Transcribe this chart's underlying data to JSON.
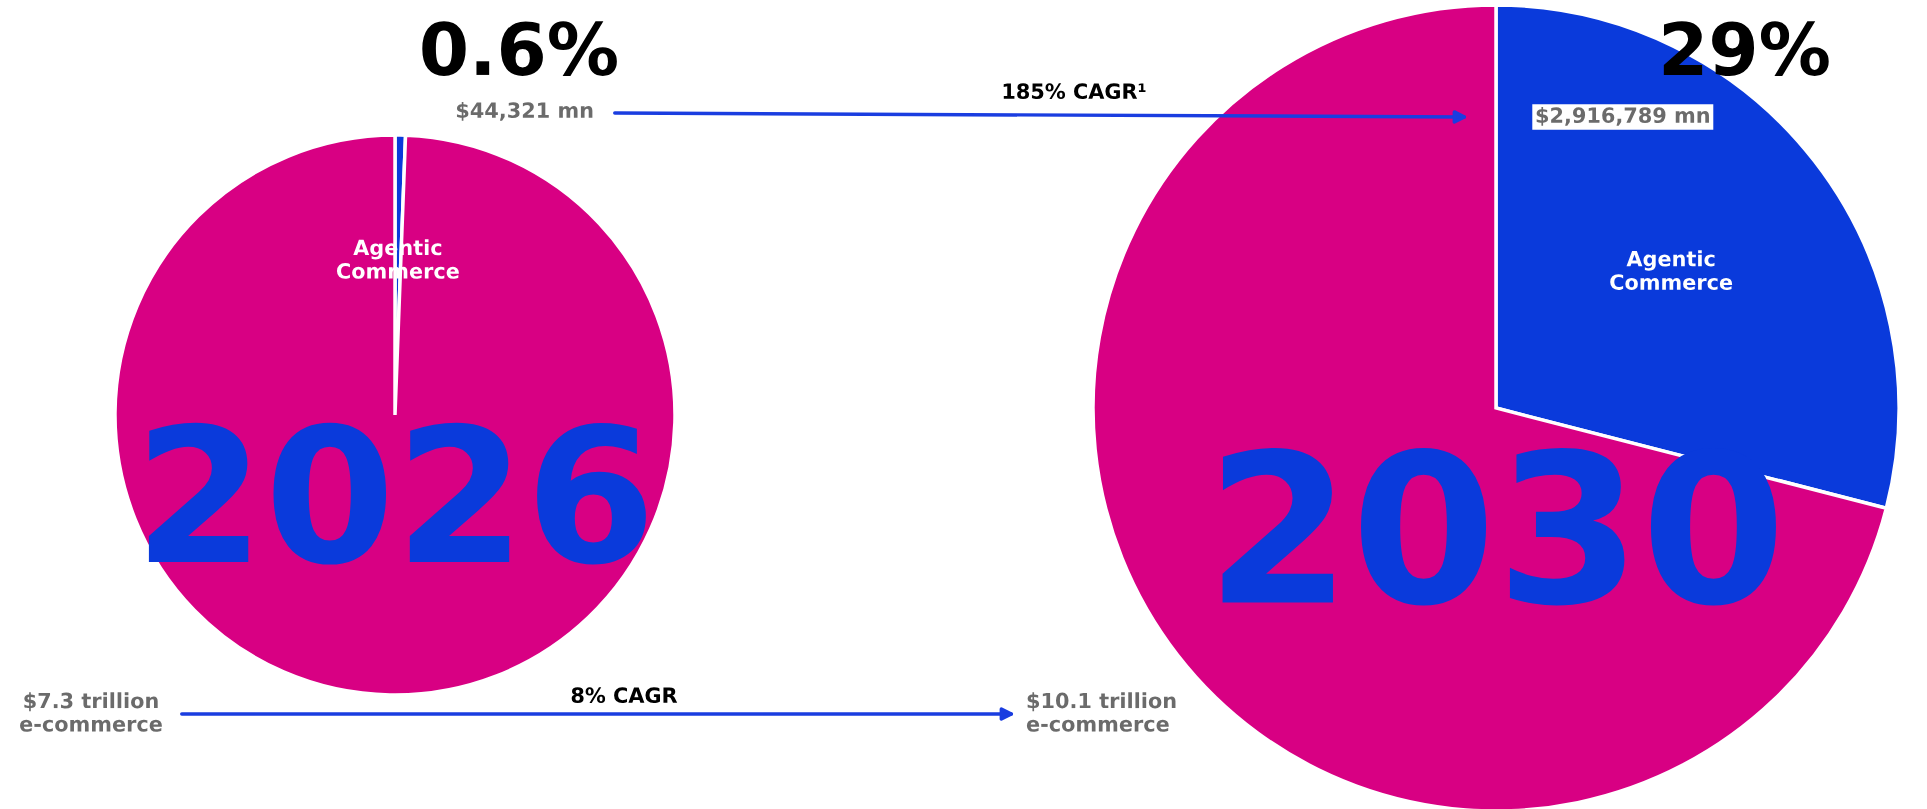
{
  "chart_data": [
    {
      "type": "pie",
      "title": "2026",
      "categories": [
        "Agentic Commerce",
        null
      ],
      "values": [
        0.6,
        99.4
      ],
      "colors": [
        "#0a3adb",
        "#d80083"
      ],
      "value_labels": [
        "0.6%",
        null
      ],
      "annotations": [
        "$44,321 mn",
        "$7.3 trillion\ne-commerce",
        "8% CAGR"
      ]
    },
    {
      "type": "pie",
      "title": "2030",
      "categories": [
        "Agentic Commerce",
        null
      ],
      "values": [
        29,
        71
      ],
      "colors": [
        "#0a3adb",
        "#d80083"
      ],
      "value_labels": [
        "29%",
        null
      ],
      "annotations": [
        "$2,916,789 mn",
        "185% CAGR¹",
        "$10.1 trillion\ne-commerce"
      ]
    }
  ]
}
